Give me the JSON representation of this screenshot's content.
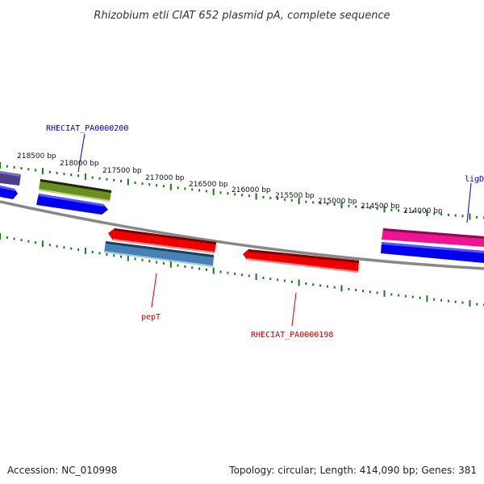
{
  "title": "Rhizobium etli CIAT 652 plasmid pA, complete sequence",
  "footer": {
    "accession": "Accession: NC_010998",
    "summary": "Topology: circular; Length: 414,090 bp; Genes: 381"
  },
  "scale_labels": [
    "218500 bp",
    "218000 bp",
    "217500 bp",
    "217000 bp",
    "216500 bp",
    "216000 bp",
    "215500 bp",
    "215000 bp",
    "214500 bp",
    "214000 bp"
  ],
  "gene_labels": {
    "pa0000200": "RHECIAT_PA0000200",
    "ligd": "ligD",
    "pept": "pepT",
    "pa0000198": "RHECIAT_PA0000198"
  },
  "colors": {
    "backbone": "#888888",
    "tick": "#1a7a1a",
    "label_blue": "#0000cc",
    "label_red": "#cc0000",
    "blue_gene": "#0000ee",
    "olive_gene": "#6b8e23",
    "red_gene": "#ee0000",
    "steel_gene": "#4682b4",
    "pink_gene": "#ee1493",
    "purple_gene": "#4b3f8a"
  }
}
